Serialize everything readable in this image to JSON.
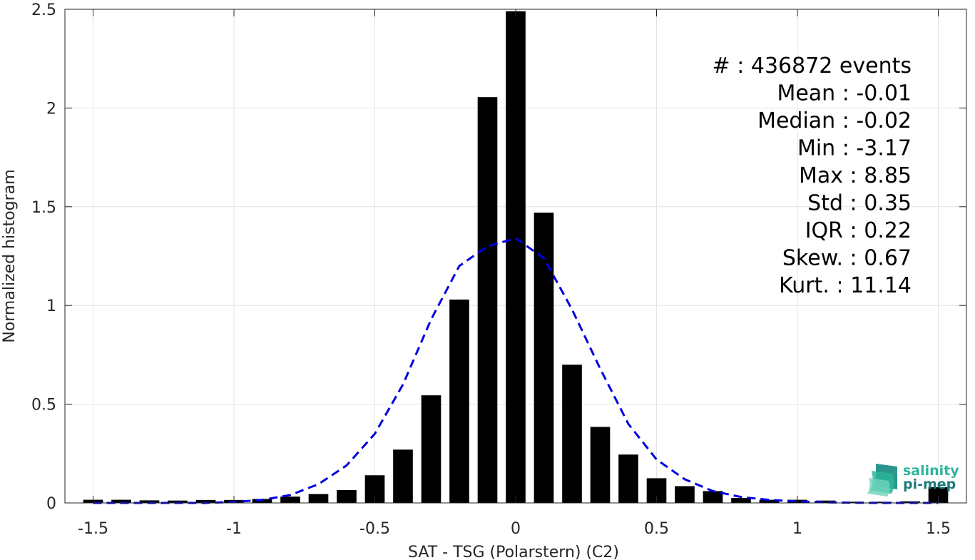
{
  "chart_data": {
    "type": "bar",
    "xlabel": "SAT - TSG (Polarstern) (C2)",
    "ylabel": "Normalized histogram",
    "xlim": [
      -1.6,
      1.6
    ],
    "ylim": [
      0,
      2.5
    ],
    "grid": true,
    "x_ticks": [
      -1.5,
      -1,
      -0.5,
      0,
      0.5,
      1,
      1.5
    ],
    "x_tick_labels": [
      "-1.5",
      "-1",
      "-0.5",
      "0",
      "0.5",
      "1",
      "1.5"
    ],
    "y_ticks": [
      0,
      0.5,
      1,
      1.5,
      2,
      2.5
    ],
    "y_tick_labels": [
      "0",
      "0.5",
      "1",
      "1.5",
      "2",
      "2.5"
    ],
    "bar_color": "#000000",
    "bin_width": 0.1,
    "bars": {
      "x": [
        -1.5,
        -1.4,
        -1.3,
        -1.2,
        -1.1,
        -1.0,
        -0.9,
        -0.8,
        -0.7,
        -0.6,
        -0.5,
        -0.4,
        -0.3,
        -0.2,
        -0.1,
        0.0,
        0.1,
        0.2,
        0.3,
        0.4,
        0.5,
        0.6,
        0.7,
        0.8,
        0.9,
        1.0,
        1.1,
        1.2,
        1.3,
        1.4,
        1.5
      ],
      "values": [
        0.016,
        0.016,
        0.013,
        0.012,
        0.015,
        0.015,
        0.02,
        0.032,
        0.045,
        0.065,
        0.14,
        0.27,
        0.545,
        1.03,
        2.055,
        2.49,
        1.47,
        0.7,
        0.385,
        0.245,
        0.125,
        0.085,
        0.06,
        0.025,
        0.016,
        0.016,
        0.012,
        0.006,
        0.006,
        0.008,
        0.08
      ]
    },
    "fit_curve": {
      "style": "dashed",
      "color": "#0000e0",
      "x": [
        -1.5,
        -1.4,
        -1.3,
        -1.2,
        -1.1,
        -1.0,
        -0.9,
        -0.8,
        -0.7,
        -0.6,
        -0.5,
        -0.4,
        -0.3,
        -0.2,
        -0.1,
        0.0,
        0.1,
        0.2,
        0.3,
        0.4,
        0.5,
        0.6,
        0.7,
        0.8,
        0.9,
        1.0,
        1.1,
        1.2,
        1.3,
        1.4,
        1.5
      ],
      "values": [
        0.0,
        0.0,
        0.0,
        0.0,
        0.0,
        0.005,
        0.015,
        0.04,
        0.095,
        0.19,
        0.35,
        0.6,
        0.93,
        1.2,
        1.3,
        1.34,
        1.24,
        0.98,
        0.68,
        0.4,
        0.22,
        0.12,
        0.06,
        0.03,
        0.015,
        0.008,
        0.003,
        0.001,
        0.0,
        0.0,
        0.0
      ]
    },
    "stats": [
      "#  : 436872 events",
      "Mean : -0.01",
      "Median : -0.02",
      "Min : -3.17",
      "Max : 8.85",
      "Std : 0.35",
      "IQR : 0.22",
      "Skew. : 0.67",
      "Kurt. : 11.14"
    ]
  },
  "logo": {
    "line1": "salinity",
    "line2": "pi-mep",
    "color1": "#2bb59a",
    "color2": "#1f7a78"
  }
}
